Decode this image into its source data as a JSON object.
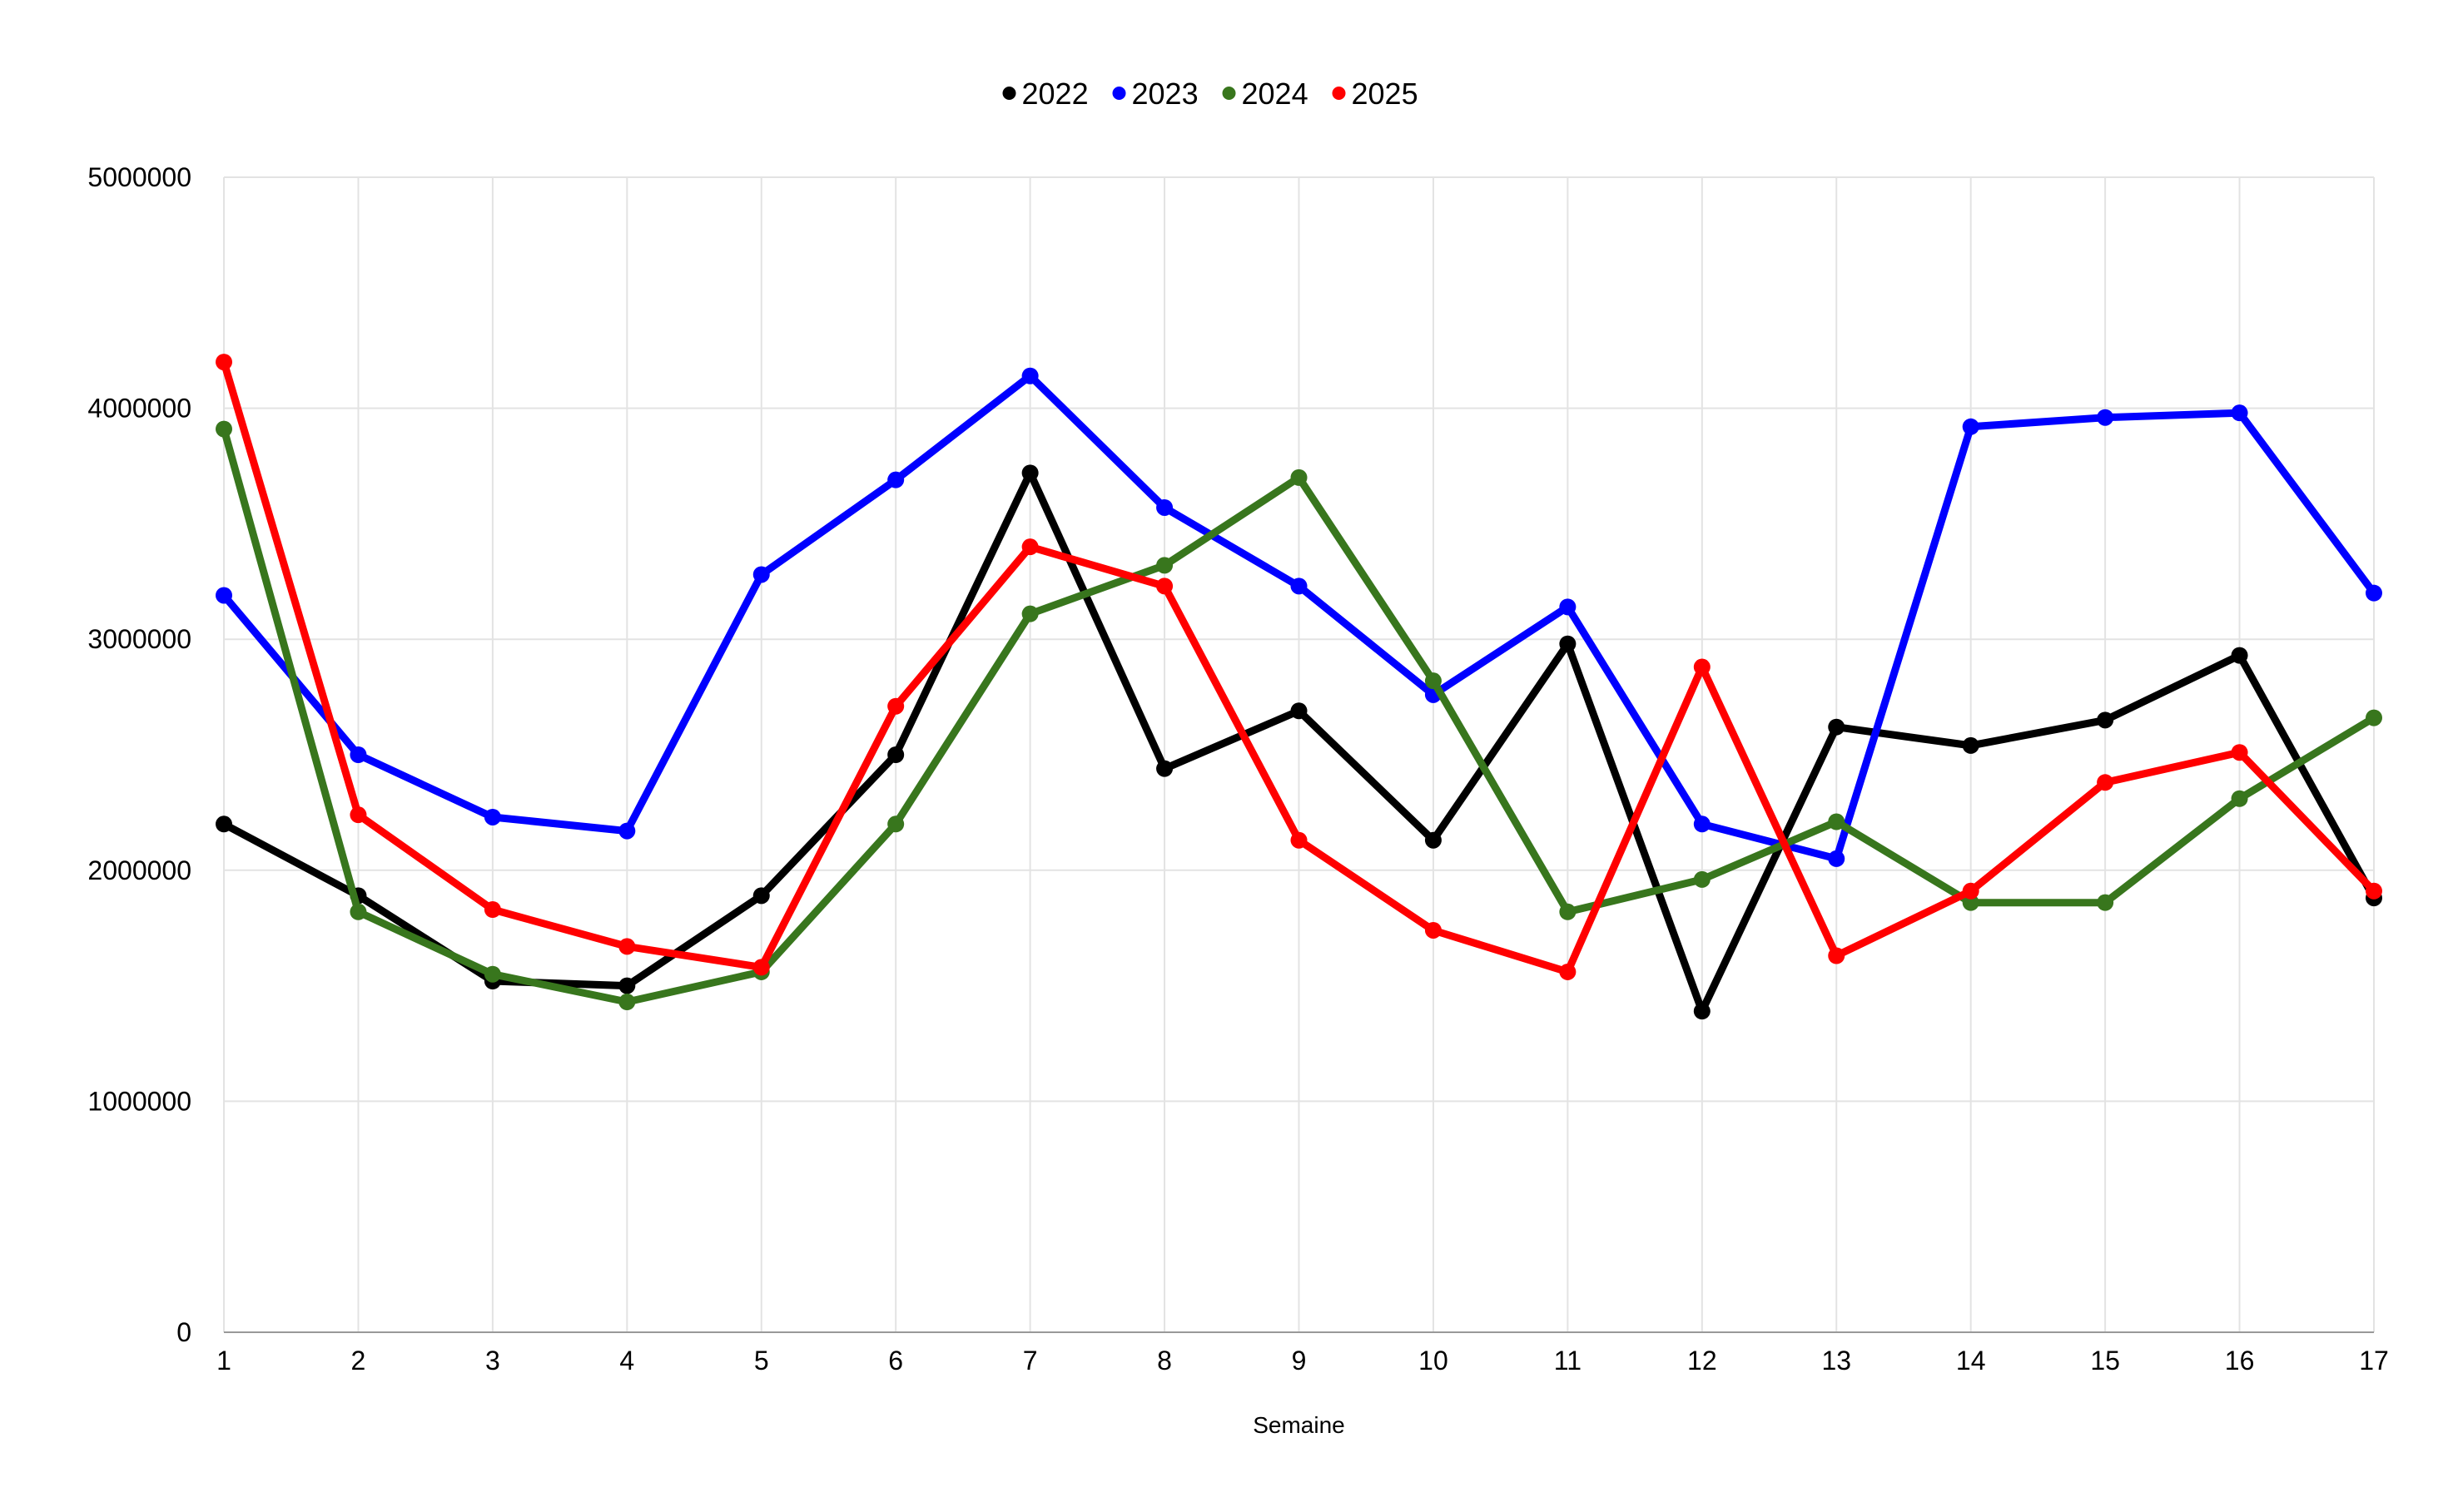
{
  "chart_data": {
    "type": "line",
    "title": "",
    "xlabel": "Semaine",
    "ylabel": "",
    "x": [
      1,
      2,
      3,
      4,
      5,
      6,
      7,
      8,
      9,
      10,
      11,
      12,
      13,
      14,
      15,
      16,
      17
    ],
    "ylim": [
      0,
      5000000
    ],
    "yticks": [
      0,
      1000000,
      2000000,
      3000000,
      4000000,
      5000000
    ],
    "grid": true,
    "legend_position": "top",
    "series": [
      {
        "name": "2022",
        "color": "#000000",
        "values": [
          2200000,
          1890000,
          1520000,
          1500000,
          1890000,
          2500000,
          3720000,
          2440000,
          2690000,
          2130000,
          2980000,
          1390000,
          2620000,
          2540000,
          2650000,
          2930000,
          1880000
        ]
      },
      {
        "name": "2023",
        "color": "#0000ff",
        "values": [
          3190000,
          2500000,
          2230000,
          2170000,
          3280000,
          3690000,
          4140000,
          3570000,
          3230000,
          2760000,
          3140000,
          2200000,
          2050000,
          3920000,
          3960000,
          3980000,
          3200000
        ]
      },
      {
        "name": "2024",
        "color": "#38761d",
        "values": [
          3910000,
          1820000,
          1550000,
          1430000,
          1560000,
          2200000,
          3110000,
          3320000,
          3700000,
          2820000,
          1820000,
          1960000,
          2210000,
          1860000,
          1860000,
          2310000,
          2660000
        ]
      },
      {
        "name": "2025",
        "color": "#ff0000",
        "values": [
          4200000,
          2240000,
          1830000,
          1670000,
          1580000,
          2710000,
          3400000,
          3230000,
          2130000,
          1740000,
          1560000,
          2880000,
          1630000,
          1910000,
          2380000,
          2510000,
          1910000
        ]
      }
    ]
  }
}
